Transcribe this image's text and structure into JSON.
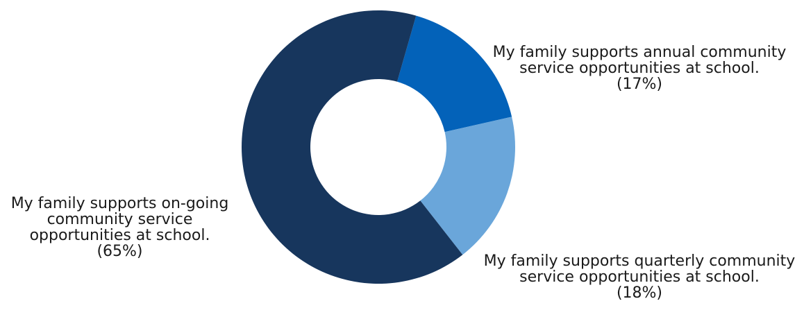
{
  "chart_data": {
    "type": "pie",
    "donut": true,
    "categories": [
      "My family supports annual community service opportunities at school.",
      "My family supports quarterly community service opportunities at school.",
      "My family supports on-going community service opportunities at school."
    ],
    "values": [
      17,
      18,
      65
    ],
    "value_labels": [
      "(17%)",
      "(18%)",
      "(65%)"
    ],
    "colors": [
      "#0362b9",
      "#6aa6da",
      "#17365d"
    ]
  }
}
